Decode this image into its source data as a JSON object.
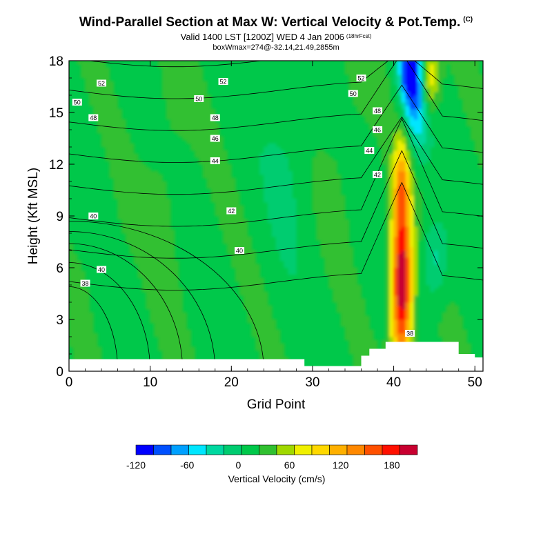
{
  "titles": {
    "main": "Wind-Parallel Section at Max W: Vertical Velocity & Pot.Temp.",
    "main_mark": "(C)",
    "valid": "Valid 1400 LST [1200Z] WED 4 Jan 2006",
    "forecast": "(18hrFcst)",
    "box": "boxWmax=274@-32.14,21.49,2855m"
  },
  "chart_data": {
    "type": "heatmap",
    "xlabel": "Grid Point",
    "ylabel": "Height (Kft MSL)",
    "xlim": [
      0,
      51
    ],
    "ylim": [
      0,
      18
    ],
    "xticks": [
      "0",
      "10",
      "20",
      "30",
      "40",
      "50"
    ],
    "yticks": [
      "0",
      "3",
      "6",
      "9",
      "12",
      "15",
      "18"
    ],
    "colorbar": {
      "title": "Vertical Velocity (cm/s)",
      "range": [
        -120,
        210
      ],
      "step": 20,
      "tick_labels": [
        "-120",
        "-60",
        "0",
        "60",
        "120",
        "180"
      ],
      "colors": [
        "#0000ff",
        "#0050ff",
        "#00a0ff",
        "#00e6ff",
        "#00d8a0",
        "#00cc70",
        "#00c84a",
        "#30c030",
        "#a0d800",
        "#f0f000",
        "#ffd800",
        "#ffb000",
        "#ff8800",
        "#ff5000",
        "#ff1000",
        "#c80030"
      ]
    },
    "terrain": [
      {
        "x": 0,
        "height": 0.7
      },
      {
        "x": 10,
        "height": 0.7
      },
      {
        "x": 29,
        "height": 0.3
      },
      {
        "x": 36,
        "height": 0.9
      },
      {
        "x": 37,
        "height": 1.3
      },
      {
        "x": 39,
        "height": 1.7
      },
      {
        "x": 44,
        "height": 1.7
      },
      {
        "x": 48,
        "height": 1.0
      },
      {
        "x": 50,
        "height": 0.8
      }
    ],
    "updraft_core": {
      "x": 41,
      "z": 5,
      "w_max": 210
    },
    "downdraft_core": {
      "x": 42,
      "z": 17.5,
      "w_min": -120
    },
    "theta_contour_labels": [
      {
        "text": "52",
        "x": 4,
        "z": 16.7
      },
      {
        "text": "50",
        "x": 1,
        "z": 15.6
      },
      {
        "text": "48",
        "x": 3,
        "z": 14.7
      },
      {
        "text": "52",
        "x": 19,
        "z": 16.8
      },
      {
        "text": "50",
        "x": 16,
        "z": 15.8
      },
      {
        "text": "48",
        "x": 18,
        "z": 14.7
      },
      {
        "text": "46",
        "x": 18,
        "z": 13.5
      },
      {
        "text": "44",
        "x": 18,
        "z": 12.2
      },
      {
        "text": "52",
        "x": 36,
        "z": 17.0
      },
      {
        "text": "50",
        "x": 35,
        "z": 16.1
      },
      {
        "text": "48",
        "x": 38,
        "z": 15.1
      },
      {
        "text": "46",
        "x": 38,
        "z": 14.0
      },
      {
        "text": "44",
        "x": 37,
        "z": 12.8
      },
      {
        "text": "42",
        "x": 38,
        "z": 11.4
      },
      {
        "text": "42",
        "x": 20,
        "z": 9.3
      },
      {
        "text": "40",
        "x": 3,
        "z": 9.0
      },
      {
        "text": "40",
        "x": 21,
        "z": 7.0
      },
      {
        "text": "40",
        "x": 4,
        "z": 5.9
      },
      {
        "text": "38",
        "x": 2,
        "z": 5.1
      },
      {
        "text": "38",
        "x": 42,
        "z": 2.2
      }
    ]
  }
}
